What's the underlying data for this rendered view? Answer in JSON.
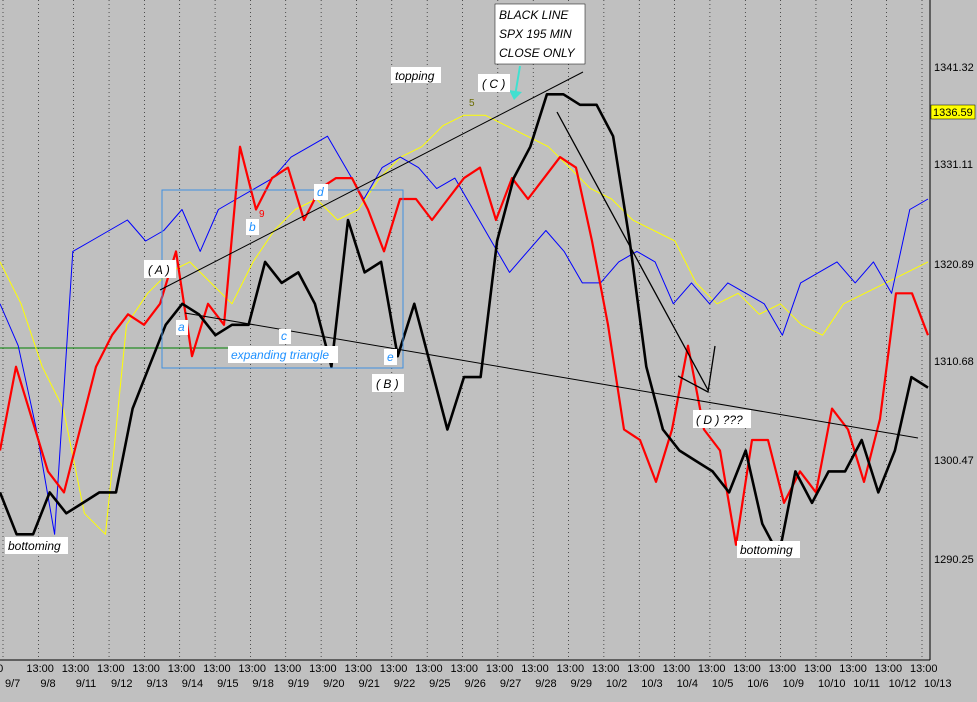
{
  "chart_data": {
    "type": "line",
    "ylim": [
      1284,
      1347
    ],
    "y_ticks": [
      "1290.25",
      "1300.47",
      "1310.68",
      "1320.89",
      "1331.11",
      "1341.32"
    ],
    "last_price": "1336.59",
    "x_time_labels": [
      "00",
      "13:00",
      "13:00",
      "13:00",
      "13:00",
      "13:00",
      "13:00",
      "13:00",
      "13:00",
      "13:00",
      "13:00",
      "13:00",
      "13:00",
      "13:00",
      "13:00",
      "13:00",
      "13:00",
      "13:00",
      "13:00",
      "13:00",
      "13:00",
      "13:00",
      "13:00",
      "13:00",
      "13:00",
      "13:00",
      "13:00"
    ],
    "x_date_labels": [
      "9/7",
      "9/8",
      "9/11",
      "9/12",
      "9/13",
      "9/14",
      "9/15",
      "9/18",
      "9/19",
      "9/20",
      "9/21",
      "9/22",
      "9/25",
      "9/26",
      "9/27",
      "9/28",
      "9/29",
      "10/2",
      "10/3",
      "10/4",
      "10/5",
      "10/6",
      "10/9",
      "10/10",
      "10/11",
      "10/12",
      "10/13"
    ],
    "series": [
      {
        "color": "#000000",
        "values": [
          1300,
          1296,
          1296,
          1300,
          1298,
          1299,
          1300,
          1300,
          1308,
          1312,
          1316,
          1318,
          1317,
          1315,
          1316,
          1316,
          1322,
          1320,
          1321,
          1318,
          1312,
          1326,
          1321,
          1322,
          1313,
          1318,
          1312,
          1306,
          1311,
          1311,
          1324,
          1330,
          1333,
          1338,
          1338,
          1337,
          1337,
          1334,
          1324,
          1312,
          1306,
          1304,
          1303,
          1302,
          1300,
          1304,
          1297,
          1294,
          1302,
          1299,
          1302,
          1302,
          1305,
          1300,
          1304,
          1311,
          1310
        ]
      },
      {
        "color": "#ff0000",
        "values": [
          1304,
          1312,
          1307,
          1302,
          1300,
          1306,
          1312,
          1315,
          1317,
          1316,
          1318,
          1323,
          1313,
          1318,
          1316,
          1333,
          1327,
          1330,
          1331,
          1326,
          1329,
          1330,
          1330,
          1327,
          1323,
          1328,
          1328,
          1326,
          1328,
          1330,
          1331,
          1326,
          1330,
          1328,
          1330,
          1332,
          1331,
          1324,
          1316,
          1306,
          1305,
          1301,
          1306,
          1314,
          1306,
          1304,
          1295,
          1305,
          1305,
          1299,
          1302,
          1300,
          1308,
          1306,
          1301,
          1307,
          1319,
          1319,
          1315
        ]
      },
      {
        "color": "#0000ff",
        "values": [
          1318,
          1314,
          1306,
          1296,
          1323,
          1324,
          1325,
          1326,
          1324,
          1325,
          1327,
          1323,
          1327,
          1328,
          1329,
          1330,
          1332,
          1333,
          1334,
          1331,
          1328,
          1331,
          1332,
          1331,
          1329,
          1330,
          1327,
          1324,
          1321,
          1323,
          1325,
          1323,
          1320,
          1320,
          1322,
          1323,
          1322,
          1318,
          1320,
          1318,
          1320,
          1319,
          1318,
          1315,
          1320,
          1321,
          1322,
          1320,
          1322,
          1319,
          1327,
          1328
        ]
      },
      {
        "color": "#ffff00",
        "values": [
          1322,
          1318,
          1312,
          1308,
          1298,
          1296,
          1316,
          1319,
          1321,
          1322,
          1320,
          1318,
          1322,
          1325,
          1327,
          1328,
          1326,
          1327,
          1330,
          1332,
          1333,
          1335,
          1336,
          1336,
          1335,
          1334,
          1333,
          1331,
          1329,
          1328,
          1326,
          1325,
          1324,
          1320,
          1318,
          1319,
          1317,
          1318,
          1316,
          1315,
          1318,
          1319,
          1320,
          1321,
          1322
        ]
      }
    ]
  },
  "annotations": {
    "box_text": [
      "BLACK LINE",
      "SPX 195 MIN",
      "CLOSE ONLY"
    ],
    "topping": "topping",
    "wave_c": "( C )",
    "wave_a": "( A )",
    "wave_b": "( B )",
    "wave_d": "( D ) ???",
    "a": "a",
    "b": "b",
    "c": "c",
    "d": "d",
    "e": "e",
    "expanding": "expanding triangle",
    "bottoming_left": "bottoming",
    "bottoming_right": "bottoming",
    "five": "5",
    "nine": "9"
  },
  "colors": {
    "background": "#c0c0c0",
    "last_price_bg": "#ffff00",
    "triangle_box": "#3f8fdf",
    "label_blue": "#1e90ff"
  }
}
